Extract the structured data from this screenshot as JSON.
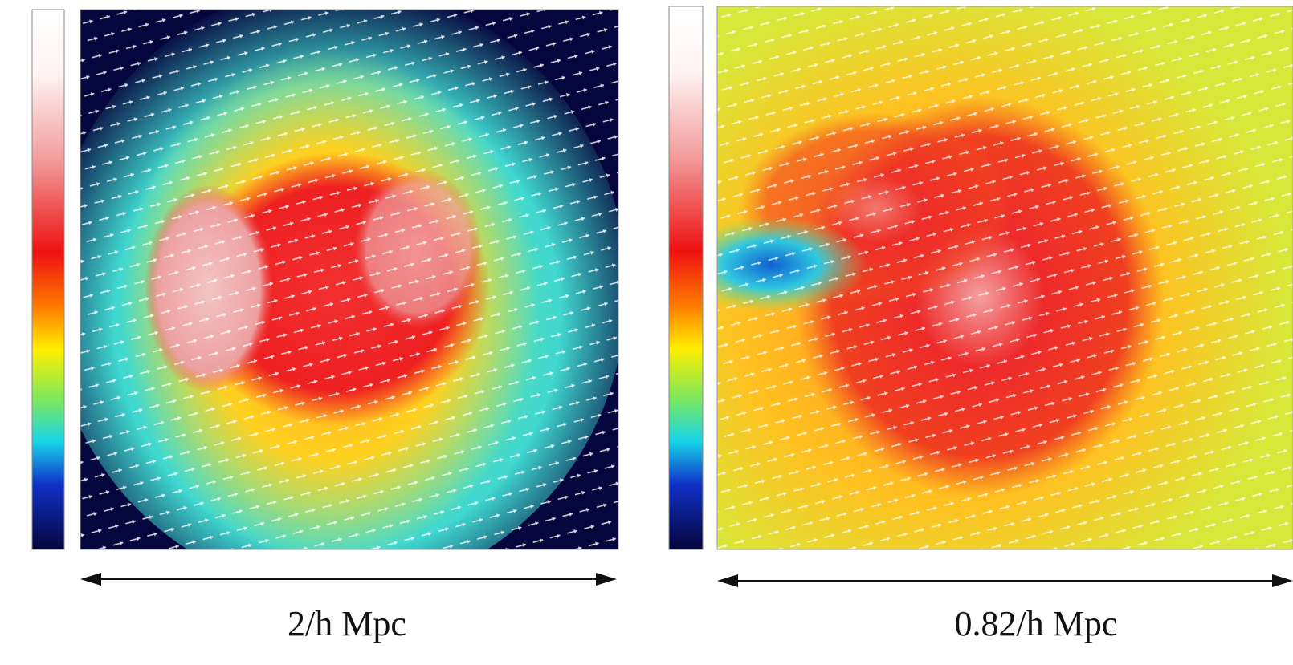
{
  "panels": [
    {
      "scale_label": "2/h Mpc"
    },
    {
      "scale_label": "0.82/h Mpc"
    }
  ]
}
